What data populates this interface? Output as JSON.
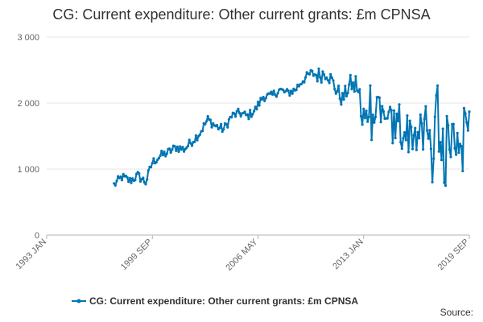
{
  "chart_data": {
    "type": "line",
    "title": "CG: Current expenditure: Other current grants: £m CPNSA",
    "xlabel": "",
    "ylabel": "",
    "x_range": [
      "1993 JAN",
      "2019 SEP"
    ],
    "x_ticks": [
      "1993 JAN",
      "1999 SEP",
      "2006 MAY",
      "2013 JAN",
      "2019 SEP"
    ],
    "y_ticks": [
      "0",
      "1 000",
      "2 000",
      "3 000"
    ],
    "y_tick_values": [
      0,
      1000,
      2000,
      3000
    ],
    "ylim": [
      0,
      3000
    ],
    "grid": true,
    "legend_position": "bottom",
    "series": [
      {
        "name": "CG: Current expenditure: Other current grants: £m CPNSA",
        "color": "#0075b3",
        "x_start": "1997 APR",
        "x_end": "2019 SEP",
        "frequency": "monthly",
        "anchors": [
          [
            "1997 APR",
            760
          ],
          [
            "1997 OCT",
            880
          ],
          [
            "1998 APR",
            820
          ],
          [
            "1998 OCT",
            900
          ],
          [
            "1999 APR",
            800
          ],
          [
            "1999 SEP",
            1100
          ],
          [
            "2000 MAR",
            1200
          ],
          [
            "2000 SEP",
            1250
          ],
          [
            "2001 MAR",
            1330
          ],
          [
            "2001 SEP",
            1300
          ],
          [
            "2002 MAR",
            1420
          ],
          [
            "2002 SEP",
            1550
          ],
          [
            "2003 MAR",
            1750
          ],
          [
            "2003 SEP",
            1650
          ],
          [
            "2004 MAR",
            1600
          ],
          [
            "2004 SEP",
            1800
          ],
          [
            "2005 MAR",
            1850
          ],
          [
            "2005 SEP",
            1800
          ],
          [
            "2006 MAR",
            1900
          ],
          [
            "2006 SEP",
            2100
          ],
          [
            "2007 MAR",
            2100
          ],
          [
            "2007 SEP",
            2200
          ],
          [
            "2008 MAR",
            2150
          ],
          [
            "2008 SEP",
            2200
          ],
          [
            "2009 MAR",
            2350
          ],
          [
            "2009 SEP",
            2450
          ],
          [
            "2010 MAR",
            2420
          ],
          [
            "2010 SEP",
            2480
          ],
          [
            "2011 MAR",
            2250
          ],
          [
            "2011 SEP",
            2050
          ],
          [
            "2012 MAR",
            2300
          ],
          [
            "2012 SEP",
            2150
          ],
          [
            "2013 MAR",
            1800
          ],
          [
            "2013 SEP",
            1900
          ],
          [
            "2014 MAR",
            1700
          ],
          [
            "2014 SEP",
            1650
          ],
          [
            "2015 MAR",
            1600
          ],
          [
            "2015 SEP",
            1550
          ],
          [
            "2016 MAR",
            1550
          ],
          [
            "2016 SEP",
            1500
          ],
          [
            "2017 MAR",
            1450
          ],
          [
            "2017 SEP",
            1500
          ],
          [
            "2018 MAR",
            1500
          ],
          [
            "2018 SEP",
            1450
          ],
          [
            "2019 MAR",
            1550
          ],
          [
            "2019 SEP",
            1870
          ]
        ]
      }
    ]
  },
  "legend": {
    "label": "CG: Current expenditure: Other current grants: £m CPNSA"
  },
  "source": "Source:"
}
